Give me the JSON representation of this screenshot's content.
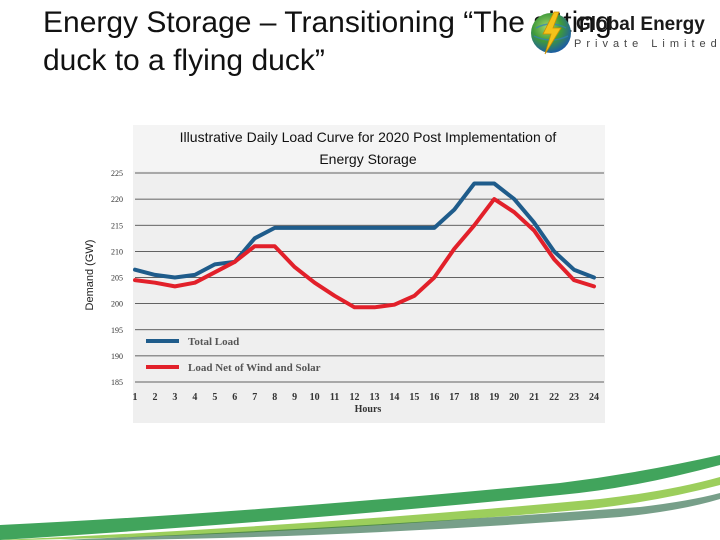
{
  "slide": {
    "title": "Energy Storage – Transitioning “The sitting duck to a flying duck”"
  },
  "logo": {
    "name": "Global Energy",
    "subtitle": "Private Limited",
    "icon": "globe-lightning-icon"
  },
  "chart_data": {
    "type": "line",
    "title": "Illustrative Daily Load Curve for 2020 Post Implementation of Energy Storage",
    "xlabel": "Hours",
    "ylabel": "Demand (GW)",
    "x": [
      1,
      2,
      3,
      4,
      5,
      6,
      7,
      8,
      9,
      10,
      11,
      12,
      13,
      14,
      15,
      16,
      17,
      18,
      19,
      20,
      21,
      22,
      23,
      24
    ],
    "ylim": [
      185,
      225
    ],
    "yticks": [
      185,
      190,
      195,
      200,
      205,
      210,
      215,
      220,
      225
    ],
    "grid": true,
    "legend_position": "bottom-left",
    "series": [
      {
        "name": "Total Load",
        "color": "#1f5c8b",
        "values": [
          206.5,
          205.5,
          205,
          205.5,
          207.5,
          208,
          212.5,
          214.5,
          214.5,
          214.5,
          214.5,
          214.5,
          214.5,
          214.5,
          214.5,
          214.5,
          218,
          223,
          223,
          220,
          215.5,
          210,
          206.5,
          205
        ]
      },
      {
        "name": "Load Net of Wind and Solar",
        "color": "#e2202a",
        "values": [
          204.5,
          204,
          203.3,
          204,
          206,
          208,
          211,
          211,
          207,
          204,
          201.5,
          199.3,
          199.3,
          199.8,
          201.5,
          205,
          210.5,
          215,
          220,
          217.5,
          214,
          208.5,
          204.5,
          203.3
        ]
      }
    ]
  }
}
